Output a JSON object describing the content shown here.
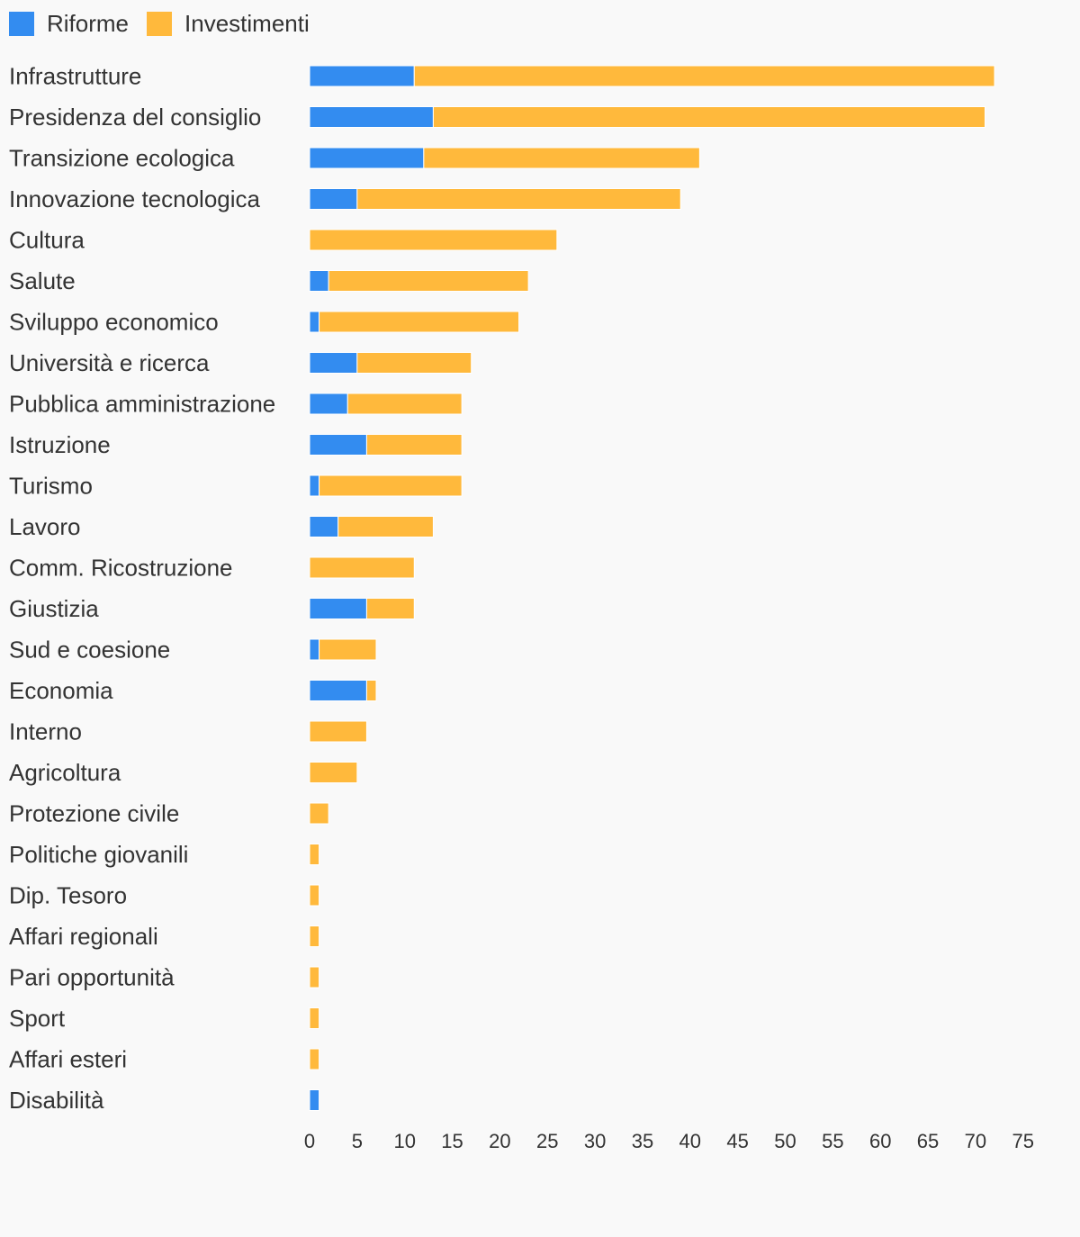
{
  "colors": {
    "riforme": "#338cf0",
    "investimenti": "#ffb93c",
    "background": "#f9f9f9",
    "text": "#333333"
  },
  "legend": {
    "items": [
      {
        "label": "Riforme",
        "color": "#338cf0"
      },
      {
        "label": "Investimenti",
        "color": "#ffb93c"
      }
    ]
  },
  "chart_data": {
    "type": "bar",
    "orientation": "horizontal",
    "stacked": true,
    "grid": false,
    "legend_position": "top-left",
    "categories": [
      "Infrastrutture",
      "Presidenza del consiglio",
      "Transizione ecologica",
      "Innovazione tecnologica",
      "Cultura",
      "Salute",
      "Sviluppo economico",
      "Università e ricerca",
      "Pubblica amministrazione",
      "Istruzione",
      "Turismo",
      "Lavoro",
      "Comm. Ricostruzione",
      "Giustizia",
      "Sud e coesione",
      "Economia",
      "Interno",
      "Agricoltura",
      "Protezione civile",
      "Politiche giovanili",
      "Dip. Tesoro",
      "Affari regionali",
      "Pari opportunità",
      "Sport",
      "Affari esteri",
      "Disabilità"
    ],
    "series": [
      {
        "name": "Riforme",
        "color": "#338cf0",
        "values": [
          11,
          13,
          12,
          5,
          0,
          2,
          1,
          5,
          4,
          6,
          1,
          3,
          0,
          6,
          1,
          6,
          0,
          0,
          0,
          0,
          0,
          0,
          0,
          0,
          0,
          1
        ]
      },
      {
        "name": "Investimenti",
        "color": "#ffb93c",
        "values": [
          61,
          58,
          29,
          34,
          26,
          21,
          21,
          12,
          12,
          10,
          15,
          10,
          11,
          5,
          6,
          1,
          6,
          5,
          2,
          1,
          1,
          1,
          1,
          1,
          1,
          0
        ]
      }
    ],
    "xlim": [
      0,
      75
    ],
    "xticks": [
      "0",
      "5",
      "10",
      "15",
      "20",
      "25",
      "30",
      "35",
      "40",
      "45",
      "50",
      "55",
      "60",
      "65",
      "70",
      "75"
    ]
  }
}
